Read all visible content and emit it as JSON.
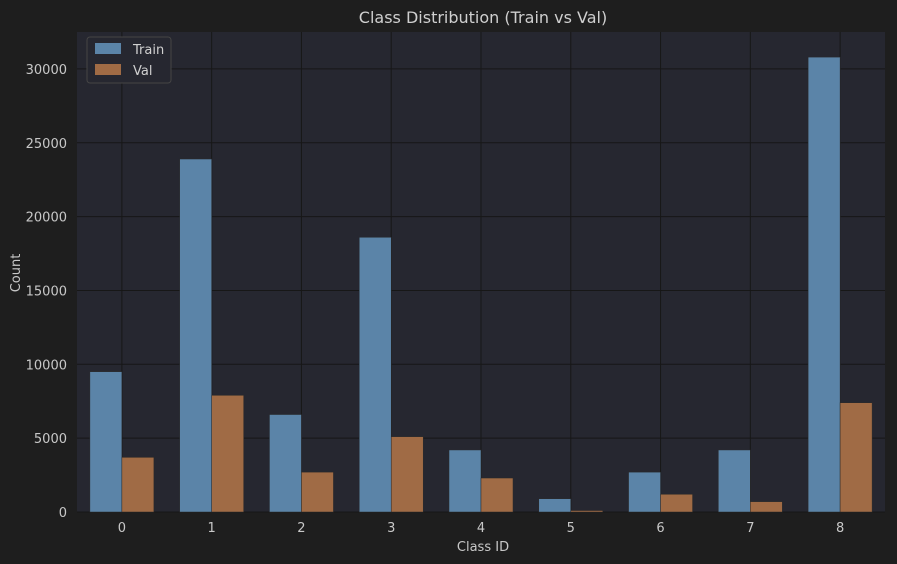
{
  "chart_data": {
    "type": "bar",
    "title": "Class Distribution (Train vs Val)",
    "xlabel": "Class ID",
    "ylabel": "Count",
    "categories": [
      "0",
      "1",
      "2",
      "3",
      "4",
      "5",
      "6",
      "7",
      "8"
    ],
    "series": [
      {
        "name": "Train",
        "color": "#5b84a8",
        "values": [
          9500,
          23900,
          6600,
          18600,
          4200,
          900,
          2700,
          4200,
          30800
        ]
      },
      {
        "name": "Val",
        "color": "#a06b45",
        "values": [
          3700,
          7900,
          2700,
          5100,
          2300,
          100,
          1200,
          700,
          7400
        ]
      }
    ],
    "yticks": [
      "0",
      "5000",
      "10000",
      "15000",
      "20000",
      "25000",
      "30000"
    ],
    "ylim": [
      0,
      32500
    ],
    "grid": true,
    "legend": "top-left"
  },
  "colors": {
    "page_background": "#1e1e1e",
    "plot_background": "#262730",
    "grid": "#171717",
    "text": "#c8c8c8"
  }
}
